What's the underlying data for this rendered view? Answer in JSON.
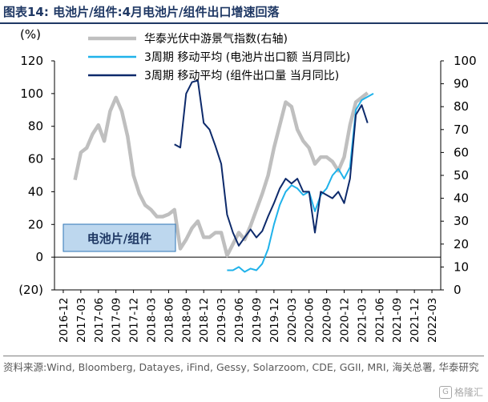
{
  "title": "图表14:  电池片/组件:4月电池片/组件出口增速回落",
  "source": "资料来源:Wind, Bloomberg, Datayes, iFind, Gessy, Solarzoom, CDE, GGII, MRI, 海关总署, 华泰研究",
  "watermark": "格隆汇",
  "colors": {
    "title": "#1f3864",
    "gray": "#bfbfbf",
    "light_blue": "#1fb2ea",
    "dark_blue": "#0d2a6b",
    "box_fill": "#bdd7ee",
    "box_border": "#2e75b6"
  },
  "chart_data": {
    "type": "line",
    "left_axis": {
      "unit": "(%)",
      "ticks": [
        120,
        100,
        80,
        60,
        40,
        20,
        0,
        "(20)"
      ],
      "ylim": [
        -20,
        120
      ]
    },
    "right_axis": {
      "ticks": [
        100,
        90,
        80,
        70,
        60,
        50,
        40,
        30,
        20,
        10,
        0
      ],
      "ylim": [
        0,
        100
      ]
    },
    "x_ticks": [
      "2016-12",
      "2017-03",
      "2017-06",
      "2017-09",
      "2017-12",
      "2018-03",
      "2018-06",
      "2018-09",
      "2018-12",
      "2019-03",
      "2019-06",
      "2019-09",
      "2019-12",
      "2020-03",
      "2020-06",
      "2020-09",
      "2020-12",
      "2021-03",
      "2021-06",
      "2021-09",
      "2021-12",
      "2022-03"
    ],
    "annotation": "电池片/组件",
    "grid": false,
    "legend_position": "top",
    "series": [
      {
        "name": "华泰光伏中游景气指数(右轴)",
        "axis": "right",
        "color": "#bfbfbf",
        "points": [
          [
            2,
            48
          ],
          [
            3,
            60
          ],
          [
            4,
            62
          ],
          [
            5,
            68
          ],
          [
            6,
            72
          ],
          [
            7,
            65
          ],
          [
            8,
            78
          ],
          [
            9,
            84
          ],
          [
            10,
            78
          ],
          [
            11,
            67
          ],
          [
            12,
            50
          ],
          [
            13,
            42
          ],
          [
            14,
            37
          ],
          [
            15,
            35
          ],
          [
            16,
            32
          ],
          [
            17,
            32
          ],
          [
            18,
            33
          ],
          [
            19,
            35
          ],
          [
            20,
            18
          ],
          [
            21,
            22
          ],
          [
            22,
            27
          ],
          [
            23,
            30
          ],
          [
            24,
            23
          ],
          [
            25,
            23
          ],
          [
            26,
            25
          ],
          [
            27,
            25
          ],
          [
            28,
            15
          ],
          [
            29,
            20
          ],
          [
            30,
            25
          ],
          [
            31,
            22
          ],
          [
            32,
            28
          ],
          [
            33,
            35
          ],
          [
            34,
            42
          ],
          [
            35,
            50
          ],
          [
            36,
            62
          ],
          [
            37,
            72
          ],
          [
            38,
            82
          ],
          [
            39,
            80
          ],
          [
            40,
            70
          ],
          [
            41,
            65
          ],
          [
            42,
            62
          ],
          [
            43,
            55
          ],
          [
            44,
            58
          ],
          [
            45,
            58
          ],
          [
            46,
            56
          ],
          [
            47,
            52
          ],
          [
            48,
            58
          ],
          [
            49,
            72
          ],
          [
            50,
            82
          ],
          [
            51,
            84
          ],
          [
            52,
            86
          ]
        ]
      },
      {
        "name": "3周期 移动平均 (电池片出口额 当月同比)",
        "axis": "left",
        "color": "#1fb2ea",
        "points": [
          [
            28,
            -8
          ],
          [
            29,
            -8
          ],
          [
            30,
            -6
          ],
          [
            31,
            -9
          ],
          [
            32,
            -7
          ],
          [
            33,
            -8
          ],
          [
            34,
            -4
          ],
          [
            35,
            5
          ],
          [
            36,
            20
          ],
          [
            37,
            32
          ],
          [
            38,
            40
          ],
          [
            39,
            44
          ],
          [
            40,
            42
          ],
          [
            41,
            38
          ],
          [
            42,
            40
          ],
          [
            43,
            28
          ],
          [
            44,
            38
          ],
          [
            45,
            42
          ],
          [
            46,
            50
          ],
          [
            47,
            54
          ],
          [
            48,
            48
          ],
          [
            49,
            55
          ],
          [
            50,
            90
          ],
          [
            51,
            96
          ],
          [
            52,
            98
          ],
          [
            53,
            100
          ]
        ]
      },
      {
        "name": "3周期 移动平均 (组件出口量 当月同比)",
        "axis": "left",
        "color": "#0d2a6b",
        "points": [
          [
            19,
            69
          ],
          [
            20,
            67
          ],
          [
            21,
            100
          ],
          [
            22,
            107
          ],
          [
            23,
            108
          ],
          [
            24,
            82
          ],
          [
            25,
            78
          ],
          [
            26,
            68
          ],
          [
            27,
            57
          ],
          [
            28,
            26
          ],
          [
            29,
            15
          ],
          [
            30,
            7
          ],
          [
            31,
            12
          ],
          [
            32,
            17
          ],
          [
            33,
            12
          ],
          [
            34,
            16
          ],
          [
            35,
            25
          ],
          [
            36,
            33
          ],
          [
            37,
            42
          ],
          [
            38,
            48
          ],
          [
            39,
            45
          ],
          [
            40,
            48
          ],
          [
            41,
            40
          ],
          [
            42,
            40
          ],
          [
            43,
            15
          ],
          [
            44,
            40
          ],
          [
            45,
            38
          ],
          [
            46,
            36
          ],
          [
            47,
            40
          ],
          [
            48,
            33
          ],
          [
            49,
            48
          ],
          [
            50,
            87
          ],
          [
            51,
            93
          ],
          [
            52,
            82
          ]
        ]
      }
    ]
  }
}
